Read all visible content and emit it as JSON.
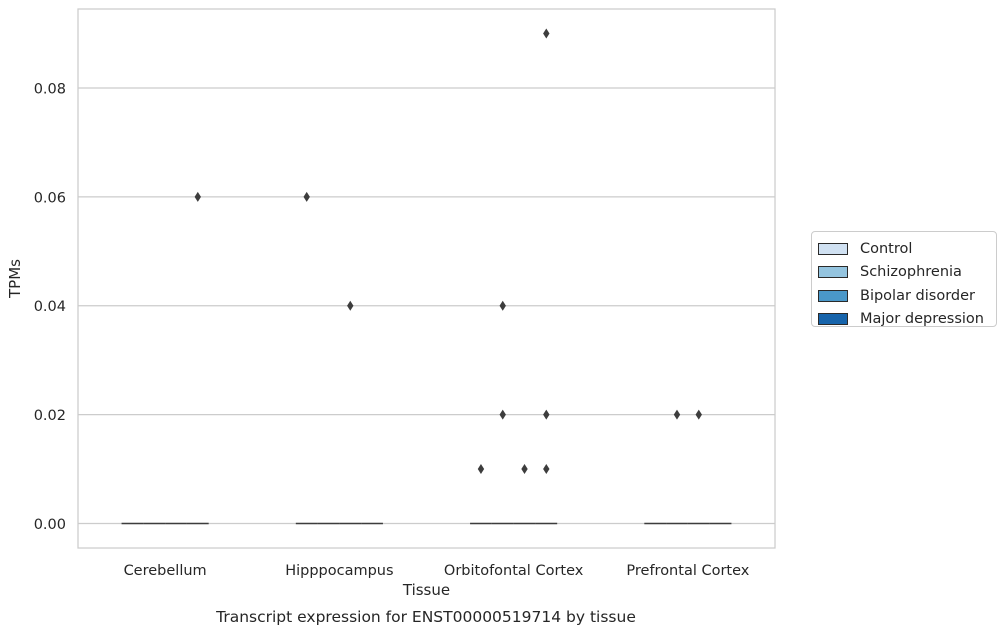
{
  "chart_data": {
    "type": "box",
    "xlabel": "Tissue",
    "ylabel": "TPMs",
    "caption": "Transcript expression for ENST00000519714 by tissue",
    "ylim": [
      -0.0045,
      0.0945
    ],
    "yticks": [
      {
        "value": 0.0,
        "label": "0.00"
      },
      {
        "value": 0.02,
        "label": "0.02"
      },
      {
        "value": 0.04,
        "label": "0.04"
      },
      {
        "value": 0.06,
        "label": "0.06"
      },
      {
        "value": 0.08,
        "label": "0.08"
      }
    ],
    "grid": "horizontal",
    "legend_placement": "right",
    "categories": [
      "Cerebellum",
      "Hipppocampus",
      "Orbitofontal Cortex",
      "Prefrontal Cortex"
    ],
    "series": [
      {
        "name": "Control",
        "color": "#d0e1f2",
        "medians": [
          0,
          0,
          0,
          0
        ],
        "outliers": [
          [],
          [
            0.06
          ],
          [
            0.01
          ],
          []
        ]
      },
      {
        "name": "Schizophrenia",
        "color": "#94c4df",
        "medians": [
          0,
          0,
          0,
          0
        ],
        "outliers": [
          [],
          [],
          [
            0.04,
            0.02
          ],
          [
            0.02
          ]
        ]
      },
      {
        "name": "Bipolar disorder",
        "color": "#4a98c9",
        "medians": [
          0,
          0,
          0,
          0
        ],
        "outliers": [
          [],
          [
            0.04
          ],
          [
            0.01
          ],
          [
            0.02
          ]
        ]
      },
      {
        "name": "Major depression",
        "color": "#1764ab",
        "medians": [
          0,
          0,
          0,
          0
        ],
        "outliers": [
          [
            0.06
          ],
          [],
          [
            0.09,
            0.02,
            0.01
          ],
          []
        ]
      }
    ]
  }
}
